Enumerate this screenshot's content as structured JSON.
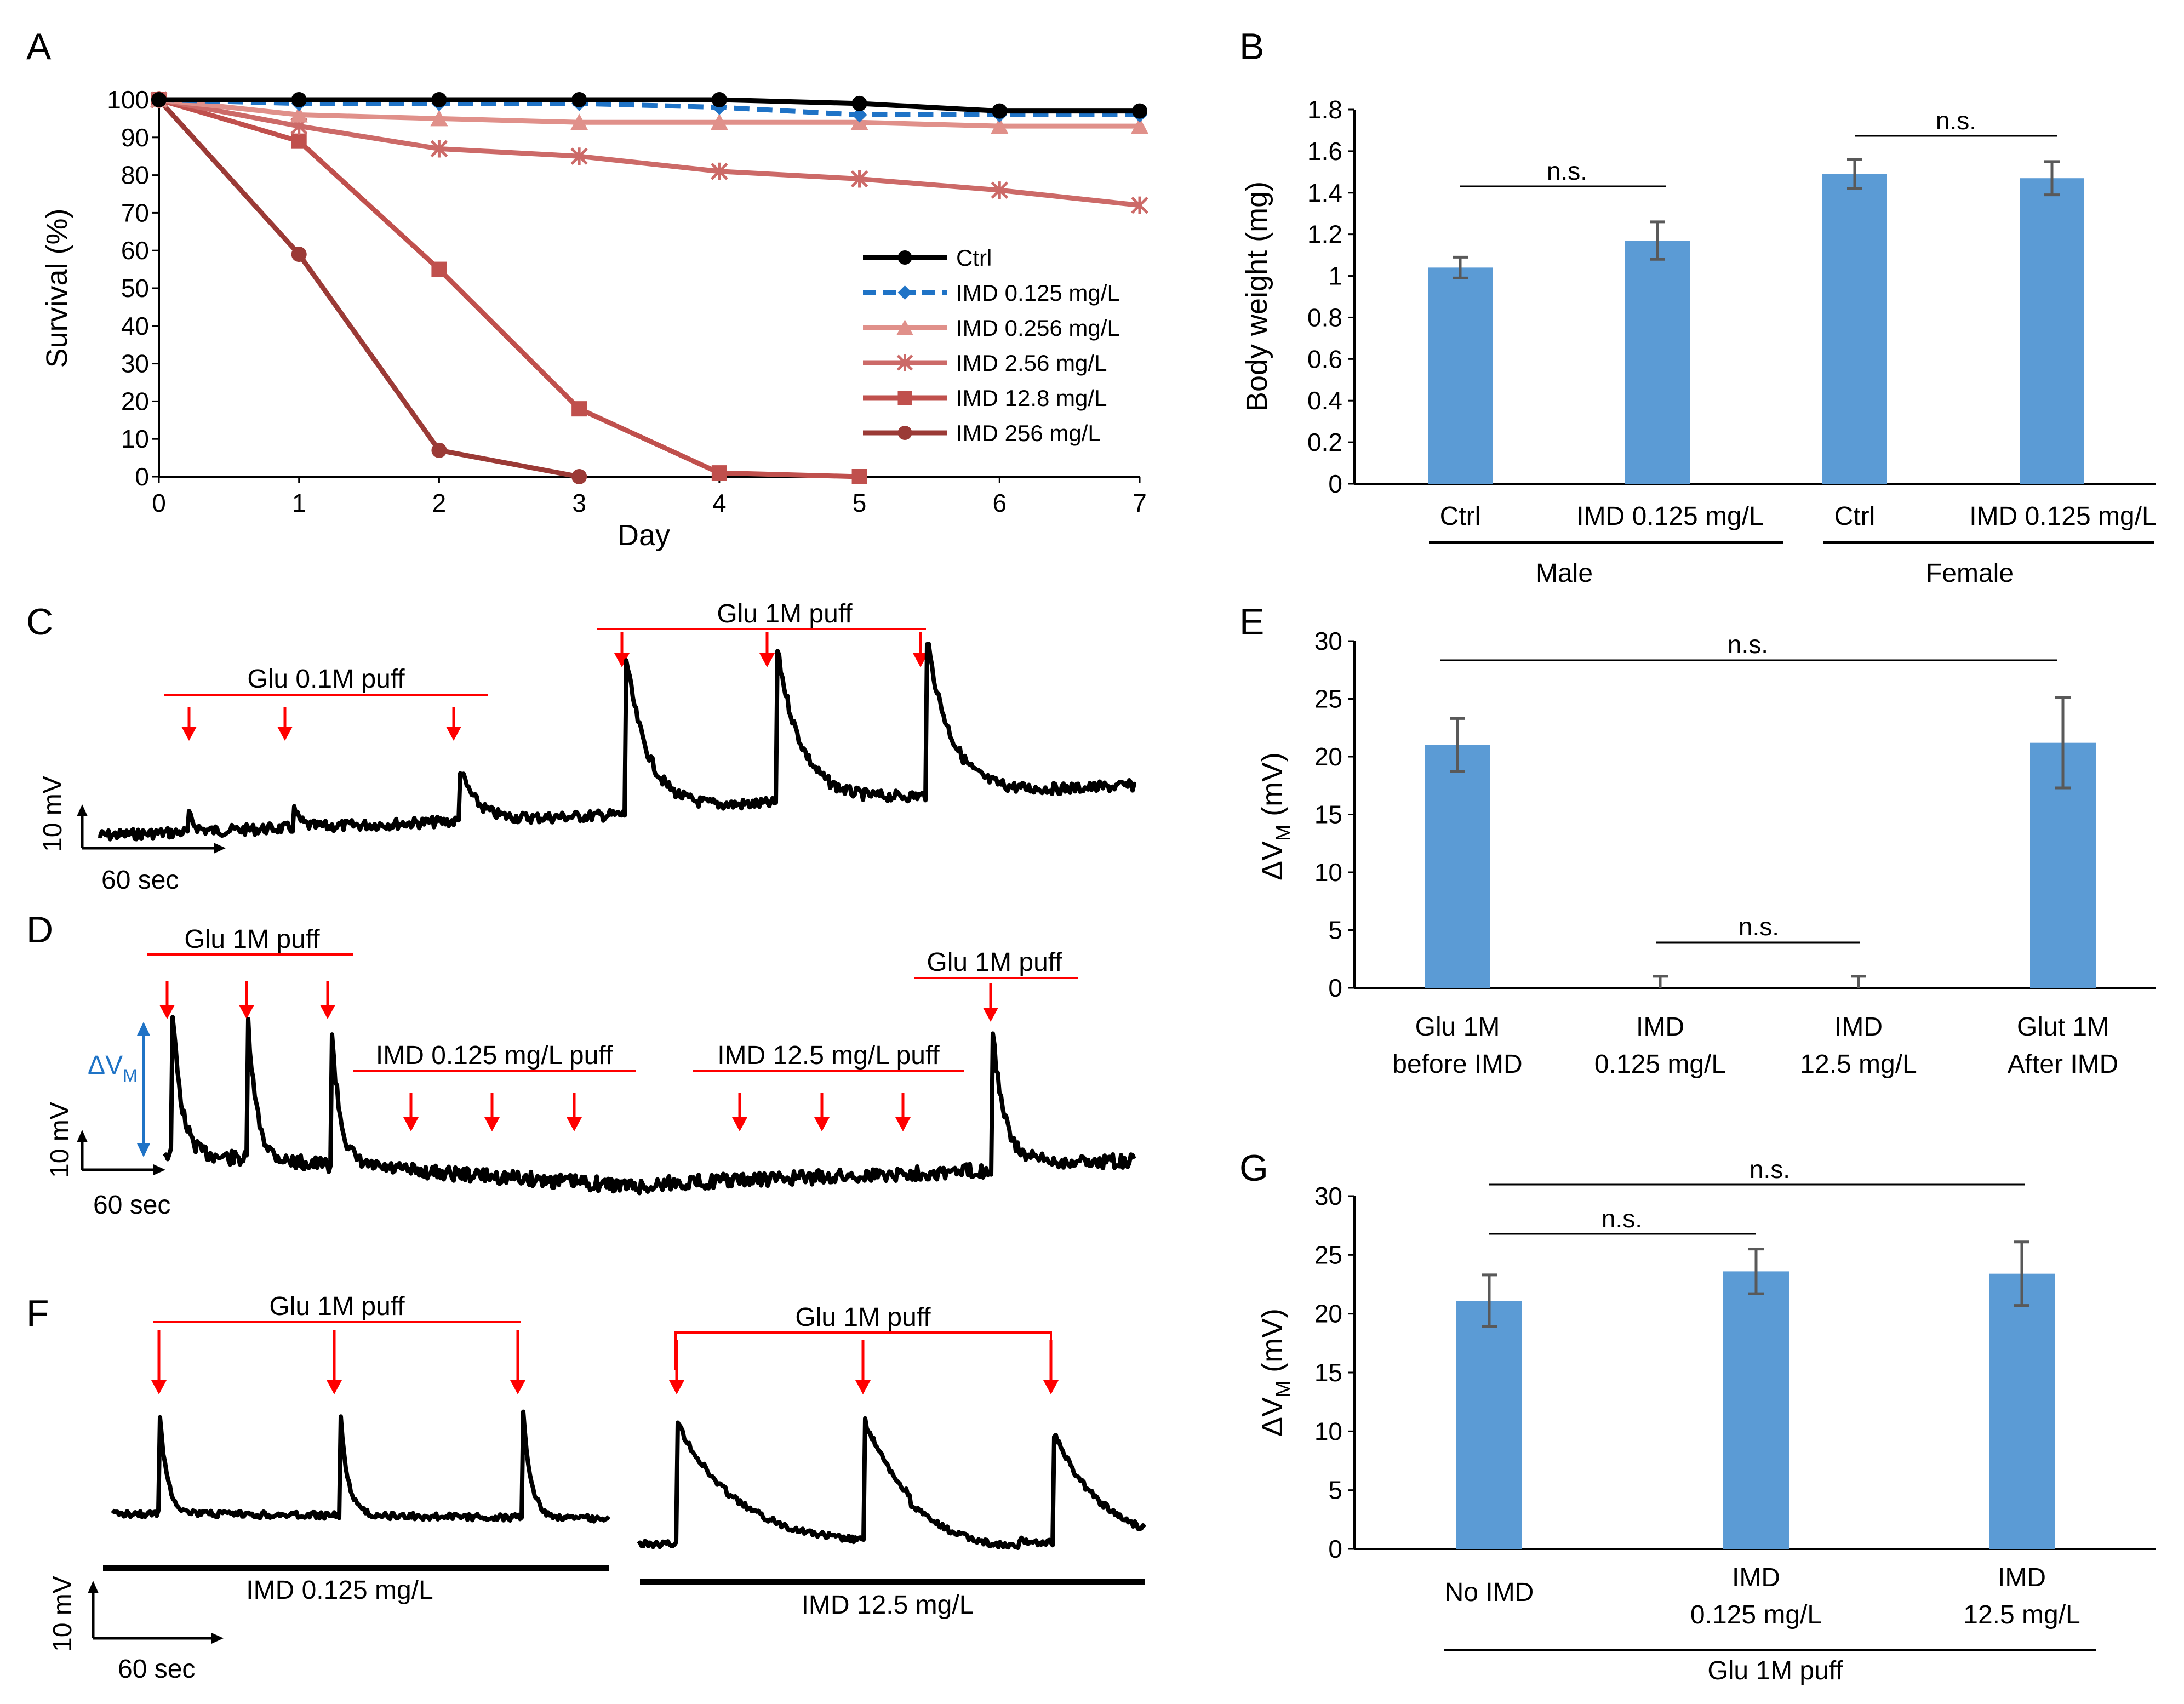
{
  "panels": {
    "A": "A",
    "B": "B",
    "C": "C",
    "D": "D",
    "E": "E",
    "F": "F",
    "G": "G"
  },
  "colors": {
    "bar": "#5b9bd5",
    "err": "#595959",
    "trace": "#000000",
    "arrow": "#ff0000",
    "dv": "#1f73c6"
  },
  "chart_data": [
    {
      "id": "A",
      "type": "line",
      "xlabel": "Day",
      "ylabel": "Survival (%)",
      "xlim": [
        0,
        7
      ],
      "ylim": [
        0,
        100
      ],
      "xticks": [
        "0",
        "1",
        "2",
        "3",
        "4",
        "5",
        "6",
        "7"
      ],
      "yticks": [
        "0",
        "10",
        "20",
        "30",
        "40",
        "50",
        "60",
        "70",
        "80",
        "90",
        "100"
      ],
      "x": [
        0,
        1,
        2,
        3,
        4,
        5,
        6,
        7
      ],
      "series": [
        {
          "name": "Ctrl",
          "color": "#000000",
          "dash": false,
          "marker": "circle",
          "values": [
            100,
            100,
            100,
            100,
            100,
            99,
            97,
            97
          ]
        },
        {
          "name": "IMD  0.125 mg/L",
          "color": "#1f73c6",
          "dash": true,
          "marker": "diamond",
          "values": [
            100,
            99,
            99,
            99,
            98,
            96,
            96,
            96
          ]
        },
        {
          "name": "IMD  0.256 mg/L",
          "color": "#e0908a",
          "dash": false,
          "marker": "triangle",
          "values": [
            100,
            96,
            95,
            94,
            94,
            94,
            93,
            93
          ]
        },
        {
          "name": "IMD  2.56 mg/L",
          "color": "#cc6a68",
          "dash": false,
          "marker": "x",
          "values": [
            100,
            93,
            87,
            85,
            81,
            79,
            76,
            72
          ]
        },
        {
          "name": "IMD  12.8 mg/L",
          "color": "#c0504d",
          "dash": false,
          "marker": "square",
          "values": [
            100,
            89,
            55,
            18,
            1,
            0,
            null,
            null
          ]
        },
        {
          "name": "IMD  256 mg/L",
          "color": "#9b3a36",
          "dash": false,
          "marker": "circle",
          "values": [
            100,
            59,
            7,
            0,
            null,
            null,
            null,
            null
          ]
        }
      ]
    },
    {
      "id": "B",
      "type": "bar",
      "ylabel": "Body weight  (mg)",
      "ylim": [
        0,
        1.8
      ],
      "yticks": [
        "0",
        "0.2",
        "0.4",
        "0.6",
        "0.8",
        "1",
        "1.2",
        "1.4",
        "1.6",
        "1.8"
      ],
      "categories": [
        "Ctrl",
        "IMD 0.125 mg/L",
        "Ctrl",
        "IMD 0.125 mg/L"
      ],
      "values": [
        1.04,
        1.17,
        1.49,
        1.47
      ],
      "errors": [
        0.05,
        0.09,
        0.07,
        0.08
      ],
      "groups": [
        "Male",
        "Female"
      ],
      "ns": [
        "n.s.",
        "n.s."
      ]
    },
    {
      "id": "E",
      "type": "bar",
      "ylabel": "ΔV",
      "ylabel_sub": "M",
      "ylabel_tail": " (mV)",
      "ylim": [
        0,
        30
      ],
      "yticks": [
        "0",
        "5",
        "10",
        "15",
        "20",
        "25",
        "30"
      ],
      "categories": [
        [
          "Glu 1M",
          "before IMD"
        ],
        [
          "IMD",
          "0.125 mg/L"
        ],
        [
          "IMD",
          "12.5 mg/L"
        ],
        [
          "Glut 1M",
          "After IMD"
        ]
      ],
      "values": [
        21,
        0,
        0,
        21.2
      ],
      "errors": [
        2.3,
        1.0,
        1.0,
        3.9
      ],
      "ns": [
        "n.s.",
        "n.s."
      ]
    },
    {
      "id": "G",
      "type": "bar",
      "ylabel": "ΔV",
      "ylabel_sub": "M",
      "ylabel_tail": " (mV)",
      "ylim": [
        0,
        30
      ],
      "yticks": [
        "0",
        "5",
        "10",
        "15",
        "20",
        "25",
        "30"
      ],
      "categories": [
        [
          "No IMD"
        ],
        [
          "IMD",
          "0.125 mg/L"
        ],
        [
          "IMD",
          "12.5 mg/L"
        ]
      ],
      "values": [
        21.1,
        23.6,
        23.4
      ],
      "errors": [
        2.2,
        1.9,
        2.7
      ],
      "group": "Glu 1M puff",
      "ns": [
        "n.s.",
        "n.s."
      ]
    }
  ],
  "traces": {
    "C": {
      "glu01": "Glu 0.1M puff",
      "glu1": "Glu 1M puff",
      "scale_y": "10 mV",
      "scale_x": "60 sec"
    },
    "D": {
      "glu1_left": "Glu 1M puff",
      "imd_low": "IMD 0.125 mg/L puff",
      "imd_high": "IMD 12.5 mg/L puff",
      "glu1_right": "Glu 1M puff",
      "dv": "ΔV",
      "dv_sub": "M",
      "scale_y": "10 mV",
      "scale_x": "60 sec"
    },
    "F": {
      "glu_left": "Glu 1M puff",
      "glu_right": "Glu 1M puff",
      "cond_left": "IMD 0.125 mg/L",
      "cond_right": "IMD 12.5 mg/L",
      "scale_y": "10 mV",
      "scale_x": "60 sec"
    }
  }
}
